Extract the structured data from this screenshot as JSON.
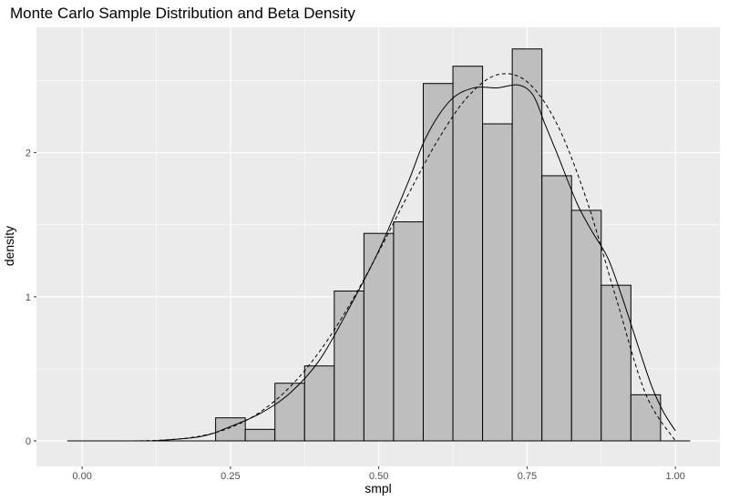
{
  "chart_data": {
    "type": "histogram",
    "title": "Monte Carlo Sample Distribution and Beta Density",
    "xlabel": "smpl",
    "ylabel": "density",
    "xlim": [
      -0.077,
      1.075
    ],
    "ylim": [
      -0.177,
      2.87
    ],
    "grid": true,
    "x_ticks": [
      "0.00",
      "0.25",
      "0.50",
      "0.75",
      "1.00"
    ],
    "x_tick_values": [
      0,
      0.25,
      0.5,
      0.75,
      1.0
    ],
    "y_ticks": [
      "0",
      "1",
      "2"
    ],
    "y_tick_values": [
      0,
      1,
      2
    ],
    "bin_width": 0.05,
    "bin_starts": [
      -0.025,
      0.025,
      0.075,
      0.125,
      0.175,
      0.225,
      0.275,
      0.325,
      0.375,
      0.425,
      0.475,
      0.525,
      0.575,
      0.625,
      0.675,
      0.725,
      0.775,
      0.825,
      0.875,
      0.925,
      0.975
    ],
    "bar_values": [
      0,
      0,
      0,
      0,
      0,
      0.16,
      0.08,
      0.4,
      0.52,
      1.04,
      1.44,
      1.52,
      2.48,
      2.6,
      2.2,
      2.72,
      1.84,
      1.6,
      1.08,
      0.32,
      0
    ],
    "bar_fill": "#bebebe",
    "bar_outline": "#000000",
    "panel_background": "#ebebeb",
    "series": [
      {
        "style": "solid",
        "kind": "kernel density",
        "x": [
          0.12,
          0.2,
          0.25,
          0.3,
          0.35,
          0.4,
          0.45,
          0.5,
          0.55,
          0.58,
          0.62,
          0.66,
          0.7,
          0.735,
          0.76,
          0.78,
          0.8,
          0.834,
          0.86,
          0.886,
          0.91,
          0.937,
          0.96,
          0.98,
          1.0
        ],
        "y": [
          0,
          0.03,
          0.1,
          0.19,
          0.33,
          0.56,
          0.92,
          1.32,
          1.8,
          2.11,
          2.36,
          2.45,
          2.45,
          2.47,
          2.4,
          2.2,
          2.0,
          1.65,
          1.45,
          1.27,
          1.0,
          0.66,
          0.38,
          0.2,
          0.07
        ]
      },
      {
        "style": "dashed",
        "kind": "beta density",
        "x": [
          0,
          0.05,
          0.1,
          0.15,
          0.2,
          0.25,
          0.3,
          0.35,
          0.4,
          0.45,
          0.5,
          0.55,
          0.6,
          0.65,
          0.7,
          0.75,
          0.8,
          0.85,
          0.9,
          0.95,
          1.0
        ],
        "y": [
          0,
          0,
          0.001,
          0.009,
          0.034,
          0.092,
          0.2,
          0.373,
          0.619,
          0.938,
          1.313,
          1.712,
          2.09,
          2.388,
          2.541,
          2.492,
          2.202,
          1.677,
          0.992,
          0.325,
          0
        ]
      }
    ]
  }
}
